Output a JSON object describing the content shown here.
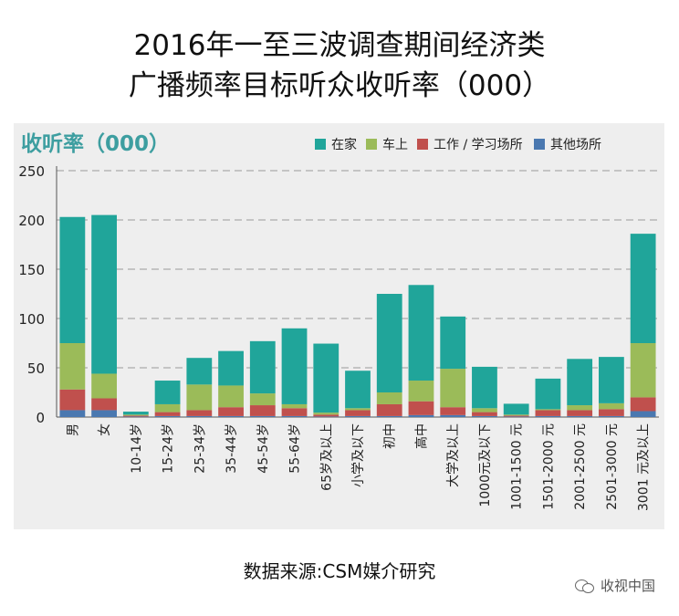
{
  "page": {
    "title_line1": "2016年一至三波调查期间经济类",
    "title_line2": "广播频率目标听众收听率（000）",
    "source": "数据来源:CSM媒介研究",
    "watermark": "收视中国"
  },
  "chart_data": {
    "type": "bar",
    "stacked": true,
    "title": "收听率（000）",
    "ylim": [
      0,
      250
    ],
    "yticks": [
      0,
      50,
      100,
      150,
      200,
      250
    ],
    "grid": true,
    "legend_position": "top-right",
    "categories": [
      "男",
      "女",
      "10-14岁",
      "15-24岁",
      "25-34岁",
      "35-44岁",
      "45-54岁",
      "55-64岁",
      "65岁及以上",
      "小学及以下",
      "初中",
      "高中",
      "大学及以上",
      "1000元及以下",
      "1001-1500 元",
      "1501-2000 元",
      "2001-2500 元",
      "2501-3000 元",
      "3001 元及以上"
    ],
    "series": [
      {
        "name": "其他场所",
        "color": "#4a78b0",
        "values": [
          7,
          7,
          0.5,
          1,
          1,
          1,
          1,
          1,
          0.5,
          1,
          1,
          2,
          2,
          1,
          0.5,
          1,
          1,
          1,
          6
        ]
      },
      {
        "name": "工作 / 学习场所",
        "color": "#c0504d",
        "values": [
          21,
          12,
          1,
          4,
          6,
          9,
          11,
          8,
          2,
          6,
          12,
          14,
          8,
          4,
          1,
          6,
          6,
          7,
          14
        ]
      },
      {
        "name": "车上",
        "color": "#9bbb59",
        "values": [
          47,
          25,
          1,
          8,
          26,
          22,
          12,
          4,
          2,
          2,
          12,
          21,
          39,
          4,
          1,
          1,
          5,
          6,
          55
        ]
      },
      {
        "name": "在家",
        "color": "#20a59a",
        "values": [
          128,
          161,
          3,
          24,
          27,
          35,
          53,
          77,
          70,
          38,
          100,
          97,
          53,
          42,
          11,
          31,
          47,
          47,
          111
        ]
      }
    ]
  }
}
